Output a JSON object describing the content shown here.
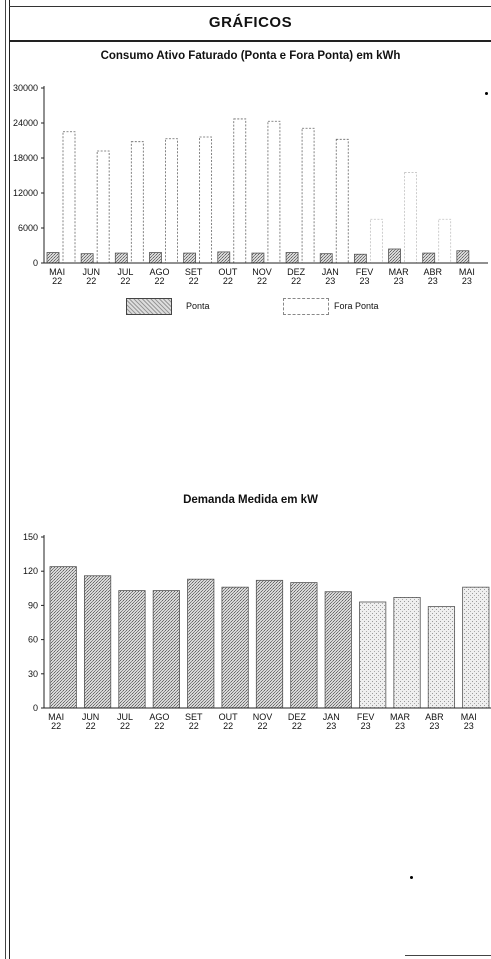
{
  "header": {
    "title": "GRÁFICOS"
  },
  "chart_data": [
    {
      "type": "bar",
      "title": "Consumo Ativo Faturado (Ponta e Fora Ponta) em kWh",
      "xlabel": "",
      "ylabel": "",
      "categories": [
        [
          "MAI",
          "22"
        ],
        [
          "JUN",
          "22"
        ],
        [
          "JUL",
          "22"
        ],
        [
          "AGO",
          "22"
        ],
        [
          "SET",
          "22"
        ],
        [
          "OUT",
          "22"
        ],
        [
          "NOV",
          "22"
        ],
        [
          "DEZ",
          "22"
        ],
        [
          "JAN",
          "23"
        ],
        [
          "FEV",
          "23"
        ],
        [
          "MAR",
          "23"
        ],
        [
          "ABR",
          "23"
        ],
        [
          "MAI",
          "23"
        ]
      ],
      "yticks": [
        0,
        6000,
        12000,
        18000,
        24000,
        30000
      ],
      "ylim": [
        0,
        30000
      ],
      "legend_placement": "bottom",
      "series": [
        {
          "name": "Ponta",
          "values": [
            1800,
            1600,
            1700,
            1800,
            1700,
            1900,
            1700,
            1800,
            1600,
            1500,
            2400,
            1700,
            2100
          ]
        },
        {
          "name": "Fora Ponta",
          "values": [
            22500,
            19200,
            20800,
            21300,
            21600,
            24700,
            24300,
            23100,
            21200,
            7500,
            15500,
            7500,
            0
          ]
        }
      ]
    },
    {
      "type": "bar",
      "title": "Demanda Medida em kW",
      "xlabel": "",
      "ylabel": "",
      "categories": [
        [
          "MAI",
          "22"
        ],
        [
          "JUN",
          "22"
        ],
        [
          "JUL",
          "22"
        ],
        [
          "AGO",
          "22"
        ],
        [
          "SET",
          "22"
        ],
        [
          "OUT",
          "22"
        ],
        [
          "NOV",
          "22"
        ],
        [
          "DEZ",
          "22"
        ],
        [
          "JAN",
          "23"
        ],
        [
          "FEV",
          "23"
        ],
        [
          "MAR",
          "23"
        ],
        [
          "ABR",
          "23"
        ],
        [
          "MAI",
          "23"
        ]
      ],
      "yticks": [
        0,
        30,
        60,
        90,
        120,
        150
      ],
      "ylim": [
        0,
        150
      ],
      "series": [
        {
          "values": [
            124,
            116,
            103,
            103,
            113,
            106,
            112,
            110,
            102,
            93,
            97,
            89,
            106
          ]
        }
      ]
    }
  ]
}
